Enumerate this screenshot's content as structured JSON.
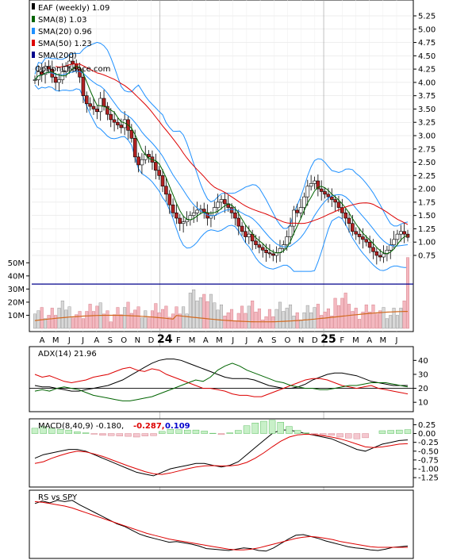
{
  "chart_data": [
    {
      "type": "candlestick",
      "panel": "price",
      "legend": [
        {
          "label": "EAF (weekly) 1.09",
          "color": "#000000"
        },
        {
          "label": "SMA(8) 1.03",
          "color": "#006400"
        },
        {
          "label": "SMA(20) 0.96",
          "color": "#1e90ff"
        },
        {
          "label": "SMA(50) 1.23",
          "color": "#dd0000"
        },
        {
          "label": "SMA(200)",
          "color": "#00008b"
        }
      ],
      "watermark": "OptionChance.com",
      "x_tick_labels": [
        "A",
        "M",
        "J",
        "J",
        "A",
        "S",
        "O",
        "N",
        "D",
        "24",
        "F",
        "M",
        "A",
        "M",
        "J",
        "J",
        "A",
        "S",
        "O",
        "N",
        "D",
        "25",
        "F",
        "M",
        "A",
        "M",
        "J"
      ],
      "y_tick_labels": [
        "5.25",
        "5.00",
        "4.75",
        "4.50",
        "4.25",
        "4.00",
        "3.75",
        "3.50",
        "3.25",
        "3.00",
        "2.75",
        "2.50",
        "2.25",
        "2.00",
        "1.75",
        "1.50",
        "1.25",
        "1.00",
        "0.75"
      ],
      "ylim": [
        0.5,
        5.25
      ],
      "close_series": [
        4.05,
        4.2,
        4.15,
        4.3,
        4.25,
        4.1,
        4.0,
        4.05,
        4.2,
        4.3,
        4.4,
        4.35,
        4.25,
        4.1,
        3.75,
        3.6,
        3.55,
        3.5,
        3.45,
        3.7,
        3.55,
        3.4,
        3.3,
        3.25,
        3.2,
        3.15,
        3.3,
        3.1,
        2.95,
        2.6,
        2.45,
        2.55,
        2.65,
        2.6,
        2.5,
        2.35,
        2.25,
        2.05,
        1.9,
        1.7,
        1.55,
        1.45,
        1.35,
        1.38,
        1.42,
        1.5,
        1.55,
        1.6,
        1.62,
        1.55,
        1.45,
        1.5,
        1.65,
        1.75,
        1.8,
        1.72,
        1.65,
        1.55,
        1.45,
        1.3,
        1.2,
        1.1,
        1.15,
        1.02,
        0.95,
        0.9,
        0.85,
        0.8,
        0.78,
        0.75,
        0.8,
        0.88,
        0.95,
        1.1,
        1.3,
        1.6,
        1.55,
        1.65,
        1.85,
        2.05,
        2.1,
        2.15,
        2.0,
        1.95,
        1.9,
        1.85,
        1.8,
        1.75,
        1.65,
        1.55,
        1.45,
        1.35,
        1.2,
        1.15,
        1.1,
        1.05,
        1.0,
        0.9,
        0.82,
        0.75,
        0.72,
        0.78,
        0.85,
        0.95,
        1.05,
        1.15,
        1.2,
        1.15,
        1.09
      ],
      "sma200_flat": 0.54,
      "volume_axis": {
        "labels": [
          "50M",
          "40M",
          "30M",
          "20M",
          "10M"
        ],
        "values": [
          50,
          40,
          30,
          20,
          10
        ],
        "unit": "M"
      },
      "volume_ma_ref": 27
    },
    {
      "type": "line",
      "panel": "adx",
      "legend": [
        {
          "label": "ADX(14) 21.96",
          "color": "#000000"
        }
      ],
      "y_tick_labels": [
        "40",
        "30",
        "20",
        "10"
      ],
      "ylim": [
        5,
        47
      ],
      "ref_line": 20,
      "series": [
        {
          "color": "#000000",
          "values": [
            22,
            21,
            21,
            20,
            19,
            18,
            18,
            19,
            20,
            21,
            22,
            24,
            26,
            29,
            32,
            35,
            38,
            40,
            41,
            41,
            40,
            38,
            36,
            34,
            32,
            30,
            28,
            27,
            27,
            27,
            26,
            24,
            22,
            21,
            20,
            20,
            21,
            23,
            26,
            28,
            30,
            31,
            31,
            30,
            29,
            27,
            25,
            24,
            23,
            22,
            22,
            22
          ]
        },
        {
          "color": "#dd0000",
          "values": [
            30,
            28,
            29,
            27,
            25,
            24,
            25,
            26,
            28,
            29,
            30,
            32,
            34,
            35,
            33,
            32,
            34,
            33,
            30,
            28,
            26,
            24,
            22,
            20,
            20,
            19,
            18,
            16,
            15,
            15,
            14,
            14,
            16,
            18,
            20,
            22,
            24,
            26,
            27,
            27,
            26,
            24,
            22,
            21,
            20,
            21,
            22,
            20,
            19,
            18,
            17,
            16
          ]
        },
        {
          "color": "#006400",
          "values": [
            18,
            19,
            18,
            20,
            21,
            20,
            19,
            17,
            15,
            14,
            13,
            12,
            11,
            11,
            12,
            13,
            14,
            16,
            18,
            20,
            22,
            24,
            26,
            25,
            28,
            33,
            36,
            38,
            36,
            33,
            31,
            29,
            27,
            25,
            24,
            22,
            21,
            20,
            20,
            19,
            19,
            20,
            21,
            22,
            22,
            23,
            24,
            24,
            24,
            23,
            22,
            21
          ]
        }
      ]
    },
    {
      "type": "line",
      "panel": "macd",
      "legend": [
        {
          "label": "MACD(8,40,9) -0.180,",
          "color": "#000000"
        },
        {
          "label": "-0.287,",
          "color": "#dd0000"
        },
        {
          "label": "0.109",
          "color": "#0000cc"
        }
      ],
      "y_tick_labels": [
        "0.25",
        "0.00",
        "-0.25",
        "-0.50",
        "-0.75",
        "-1.00",
        "-1.25"
      ],
      "ylim": [
        -1.45,
        0.35
      ],
      "series": [
        {
          "color": "#000000",
          "values": [
            -0.7,
            -0.6,
            -0.55,
            -0.5,
            -0.45,
            -0.45,
            -0.5,
            -0.6,
            -0.7,
            -0.8,
            -0.9,
            -1.0,
            -1.1,
            -1.15,
            -1.2,
            -1.1,
            -1.0,
            -0.95,
            -0.9,
            -0.85,
            -0.85,
            -0.9,
            -0.95,
            -0.9,
            -0.8,
            -0.6,
            -0.4,
            -0.2,
            0.0,
            0.1,
            0.1,
            0.05,
            0.0,
            -0.05,
            -0.1,
            -0.15,
            -0.25,
            -0.35,
            -0.45,
            -0.5,
            -0.4,
            -0.3,
            -0.25,
            -0.2,
            -0.18
          ]
        },
        {
          "color": "#dd0000",
          "values": [
            -0.85,
            -0.8,
            -0.7,
            -0.62,
            -0.55,
            -0.5,
            -0.52,
            -0.58,
            -0.65,
            -0.74,
            -0.83,
            -0.92,
            -1.0,
            -1.08,
            -1.14,
            -1.16,
            -1.12,
            -1.06,
            -1.0,
            -0.95,
            -0.92,
            -0.91,
            -0.92,
            -0.92,
            -0.89,
            -0.82,
            -0.7,
            -0.55,
            -0.38,
            -0.22,
            -0.1,
            -0.04,
            -0.02,
            -0.03,
            -0.06,
            -0.1,
            -0.15,
            -0.22,
            -0.3,
            -0.38,
            -0.4,
            -0.38,
            -0.34,
            -0.3,
            -0.29
          ]
        },
        {
          "color": "#3cb043",
          "type": "histogram",
          "values": [
            0.15,
            0.2,
            0.15,
            0.12,
            0.1,
            0.05,
            0.02,
            -0.02,
            -0.05,
            -0.06,
            -0.07,
            -0.08,
            -0.1,
            -0.07,
            -0.06,
            0.06,
            0.12,
            0.11,
            0.1,
            0.1,
            0.07,
            0.01,
            -0.03,
            0.02,
            0.09,
            0.22,
            0.3,
            0.35,
            0.38,
            0.32,
            0.2,
            0.09,
            0.02,
            -0.02,
            -0.04,
            -0.05,
            -0.1,
            -0.13,
            -0.15,
            -0.12,
            0.0,
            0.08,
            0.09,
            0.1,
            0.11
          ]
        }
      ]
    },
    {
      "type": "line",
      "panel": "rs",
      "legend": [
        {
          "label": "RS vs SPY",
          "color": "#000000"
        }
      ],
      "ylim": [
        0,
        10
      ],
      "series": [
        {
          "color": "#000000",
          "values": [
            8.4,
            8.8,
            8.5,
            8.9,
            8.7,
            8.9,
            8.2,
            7.6,
            7.0,
            6.4,
            5.8,
            5.2,
            4.8,
            4.2,
            3.6,
            3.2,
            2.9,
            2.6,
            2.3,
            2.4,
            2.2,
            2.0,
            1.7,
            1.3,
            1.2,
            1.1,
            1.0,
            1.2,
            1.4,
            1.3,
            1.0,
            0.9,
            1.4,
            2.1,
            2.8,
            3.4,
            3.5,
            3.2,
            2.9,
            2.5,
            2.2,
            1.9,
            1.6,
            1.4,
            1.3,
            1.1,
            1.0,
            1.2,
            1.5,
            1.6,
            1.7
          ]
        },
        {
          "color": "#dd0000",
          "values": [
            8.7,
            8.6,
            8.4,
            8.2,
            8.0,
            7.7,
            7.3,
            6.9,
            6.5,
            6.1,
            5.7,
            5.3,
            4.9,
            4.5,
            4.1,
            3.7,
            3.4,
            3.1,
            2.8,
            2.6,
            2.4,
            2.2,
            2.0,
            1.8,
            1.6,
            1.4,
            1.2,
            1.1,
            1.1,
            1.2,
            1.4,
            1.7,
            2.0,
            2.3,
            2.6,
            2.9,
            3.1,
            3.2,
            3.1,
            2.9,
            2.7,
            2.4,
            2.2,
            2.0,
            1.8,
            1.6,
            1.5,
            1.5,
            1.5,
            1.5,
            1.5
          ]
        }
      ]
    }
  ]
}
